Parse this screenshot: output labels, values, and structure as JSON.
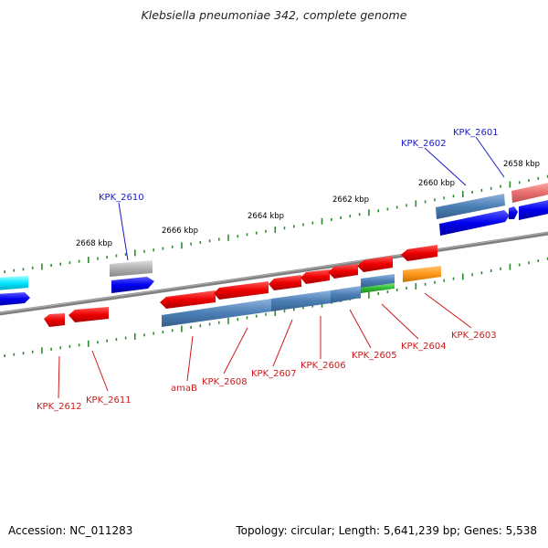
{
  "title": "Klebsiella pneumoniae 342, complete genome",
  "footer": {
    "accession": "Accession: NC_011283",
    "summary": "Topology: circular; Length: 5,641,239 bp; Genes: 5,538"
  },
  "scale_labels": [
    "2668 kbp",
    "2666 kbp",
    "2664 kbp",
    "2662 kbp",
    "2660 kbp",
    "2658 kbp"
  ],
  "gene_labels_top": [
    "KPK_2610",
    "KPK_2602",
    "KPK_2601"
  ],
  "gene_labels_bottom": [
    "KPK_2612",
    "KPK_2611",
    "amaB",
    "KPK_2608",
    "KPK_2607",
    "KPK_2606",
    "KPK_2605",
    "KPK_2604",
    "KPK_2603"
  ],
  "colors": {
    "forward_gene": "#0000ee",
    "reverse_gene": "#ee0000",
    "cog_blue": "#4b7fb5",
    "backbone": "#808080",
    "tick": "#2d8a2d",
    "top_label": "#1a1acc",
    "bottom_label": "#cc1a1a"
  }
}
